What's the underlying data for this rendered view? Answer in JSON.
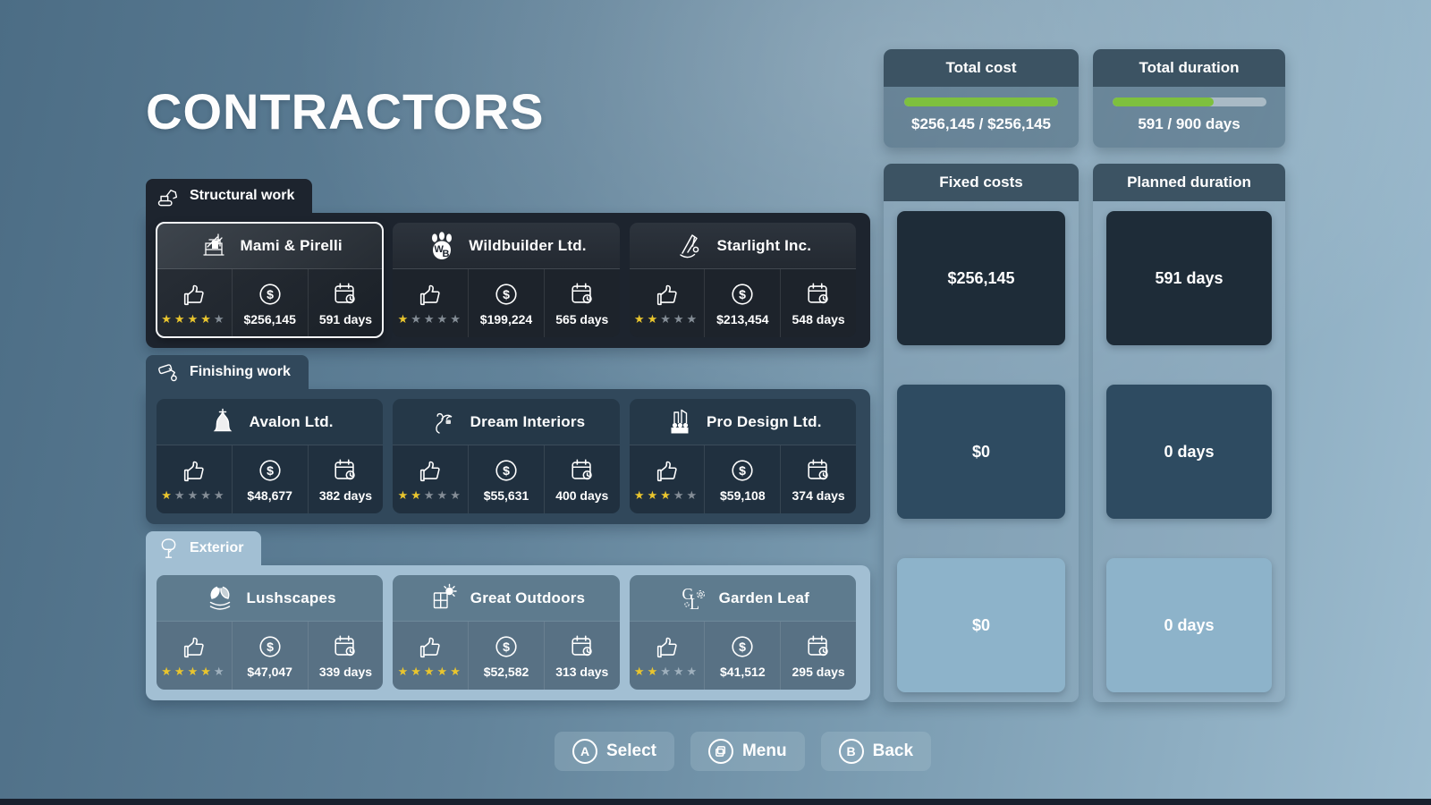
{
  "title": "CONTRACTORS",
  "sections": [
    {
      "label": "Structural work",
      "icon": "excavator-icon",
      "contractors": [
        {
          "name": "Mami & Pirelli",
          "logo": "scaffold-logo",
          "rating": 4,
          "cost": "$256,145",
          "duration": "591 days",
          "selected": true
        },
        {
          "name": "Wildbuilder Ltd.",
          "logo": "paw-logo",
          "rating": 1,
          "cost": "$199,224",
          "duration": "565 days",
          "selected": false
        },
        {
          "name": "Starlight Inc.",
          "logo": "crane-logo",
          "rating": 2,
          "cost": "$213,454",
          "duration": "548 days",
          "selected": false
        }
      ]
    },
    {
      "label": "Finishing work",
      "icon": "paint-roller-icon",
      "contractors": [
        {
          "name": "Avalon Ltd.",
          "logo": "bell-logo",
          "rating": 1,
          "cost": "$48,677",
          "duration": "382 days",
          "selected": false
        },
        {
          "name": "Dream Interiors",
          "logo": "squiggle-logo",
          "rating": 2,
          "cost": "$55,631",
          "duration": "400 days",
          "selected": false
        },
        {
          "name": "Pro Design Ltd.",
          "logo": "skyline-logo",
          "rating": 3,
          "cost": "$59,108",
          "duration": "374 days",
          "selected": false
        }
      ]
    },
    {
      "label": "Exterior",
      "icon": "tree-icon",
      "contractors": [
        {
          "name": "Lushscapes",
          "logo": "leaves-logo",
          "rating": 4,
          "cost": "$47,047",
          "duration": "339 days",
          "selected": false
        },
        {
          "name": "Great Outdoors",
          "logo": "window-sun-logo",
          "rating": 5,
          "cost": "$52,582",
          "duration": "313 days",
          "selected": false
        },
        {
          "name": "Garden Leaf",
          "logo": "monogram-logo",
          "rating": 2,
          "cost": "$41,512",
          "duration": "295 days",
          "selected": false
        }
      ]
    }
  ],
  "stat_icons": {
    "rating": "thumbs-up-icon",
    "cost": "dollar-icon",
    "duration": "calendar-icon"
  },
  "summary": {
    "total_cost": {
      "label": "Total cost",
      "value": "$256,145 / $256,145",
      "progress": 100
    },
    "total_duration": {
      "label": "Total duration",
      "value": "591 / 900 days",
      "progress": 65.7
    },
    "fixed_costs": {
      "label": "Fixed costs",
      "rows": [
        "$256,145",
        "$0",
        "$0"
      ]
    },
    "planned_duration": {
      "label": "Planned duration",
      "rows": [
        "591 days",
        "0 days",
        "0 days"
      ]
    }
  },
  "footer": {
    "buttons": [
      {
        "key": "A",
        "icon": "button-a-icon",
        "label": "Select"
      },
      {
        "key": "menu",
        "icon": "menu-windows-icon",
        "label": "Menu"
      },
      {
        "key": "B",
        "icon": "button-b-icon",
        "label": "Back"
      }
    ]
  },
  "colors": {
    "accent_green": "#7ec03e",
    "progress_track": "#a9bac5",
    "star_yellow": "#e9c52e",
    "star_gray": "#848d96",
    "row_dark": "#1e2c38",
    "row_mid": "#2e4b61",
    "row_light": "#8db3ca"
  }
}
